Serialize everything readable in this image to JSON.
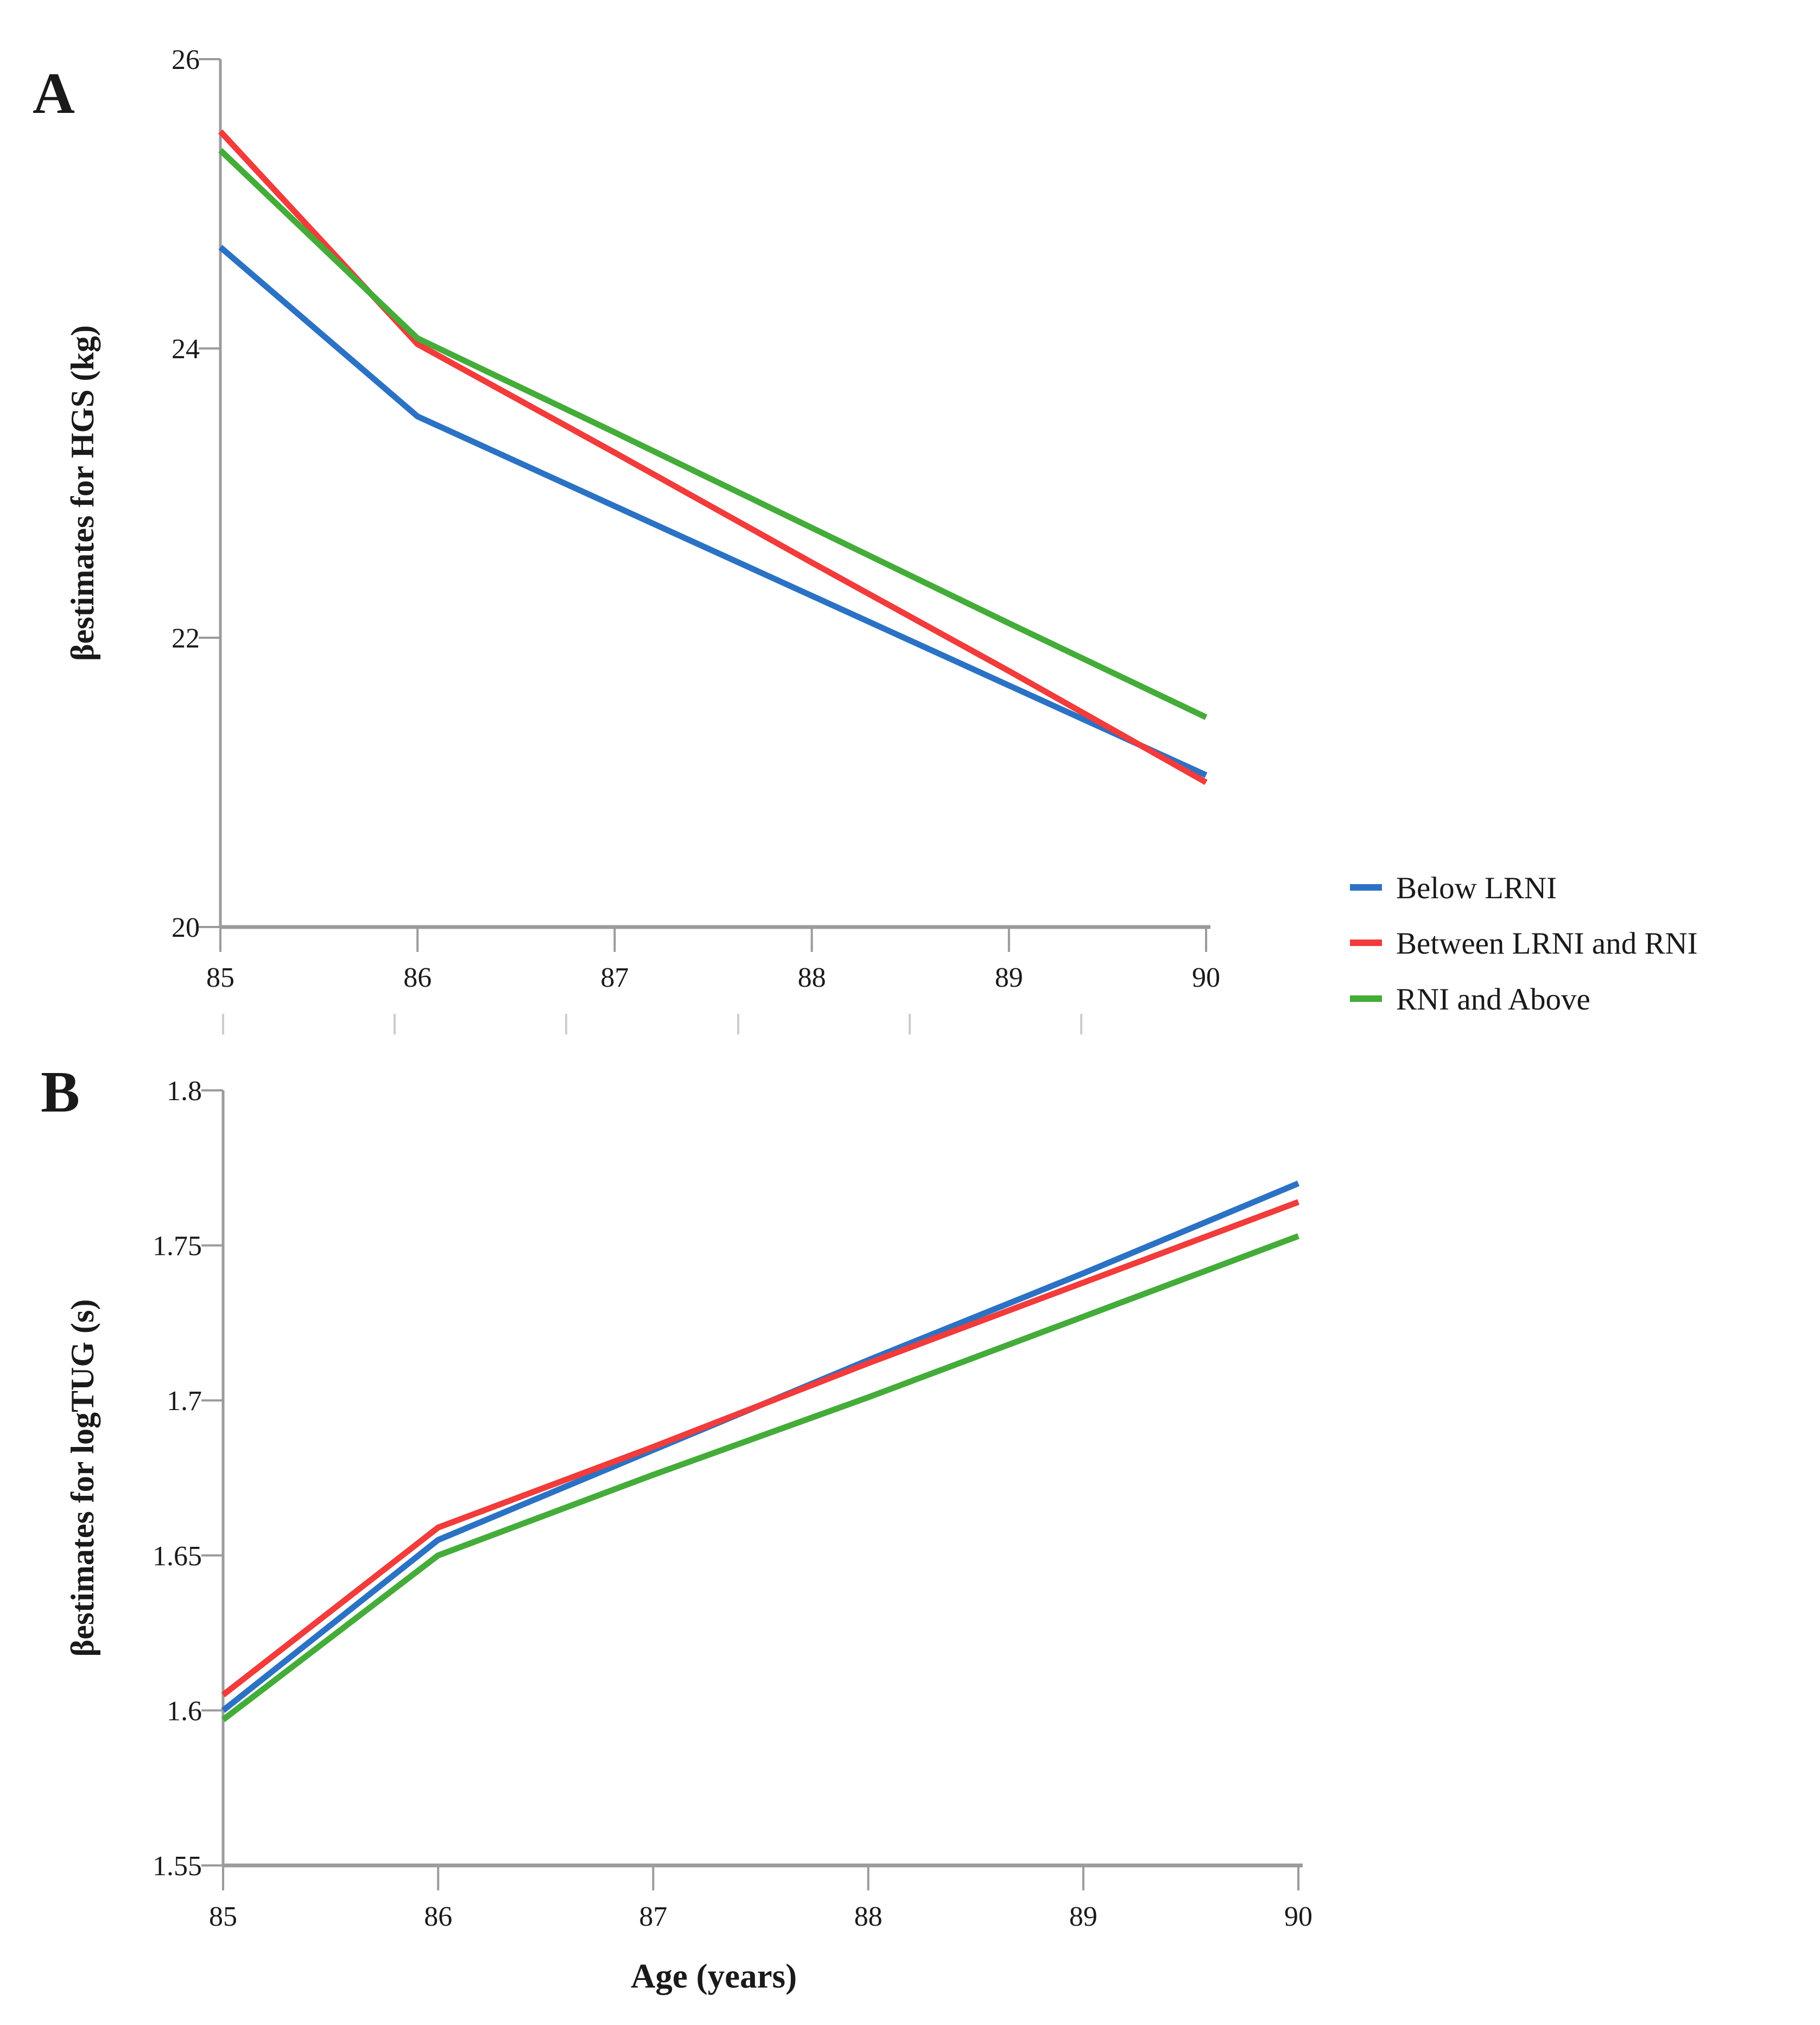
{
  "figure": {
    "background": "#ffffff",
    "axis_color": "#9b9b9b",
    "faint_tick_color": "#cccccc",
    "text_color": "#1a1a1a"
  },
  "legend": {
    "items": [
      {
        "label": "Below LRNI",
        "color": "#2b72c5"
      },
      {
        "label": "Between LRNI and RNI",
        "color": "#f23b3b"
      },
      {
        "label": "RNI and Above",
        "color": "#44ac39"
      }
    ]
  },
  "chart_data": [
    {
      "id": "A",
      "type": "line",
      "panel_label": "A",
      "title": "",
      "xlabel": "",
      "ylabel": "βestimates for HGS (kg)",
      "x": [
        85,
        86,
        87,
        88,
        89,
        90
      ],
      "xticks": [
        85,
        86,
        87,
        88,
        89,
        90
      ],
      "yticks": [
        26,
        24,
        22,
        20
      ],
      "xlim": [
        85,
        90
      ],
      "ylim": [
        20,
        26
      ],
      "grid": false,
      "legend_position": "right-of-plot",
      "series": [
        {
          "name": "Below LRNI",
          "color": "#2b72c5",
          "values": [
            24.7,
            23.53,
            22.91,
            22.29,
            21.67,
            21.05
          ]
        },
        {
          "name": "Between LRNI and RNI",
          "color": "#f23b3b",
          "values": [
            25.5,
            24.03,
            23.28,
            22.52,
            21.77,
            21.0
          ]
        },
        {
          "name": "RNI and Above",
          "color": "#44ac39",
          "values": [
            25.37,
            24.07,
            23.42,
            22.76,
            22.1,
            21.45
          ]
        }
      ]
    },
    {
      "id": "B",
      "type": "line",
      "panel_label": "B",
      "title": "",
      "xlabel": "Age (years)",
      "ylabel": "βestimates for logTUG (s)",
      "x": [
        85,
        86,
        87,
        88,
        89,
        90
      ],
      "xticks": [
        85,
        86,
        87,
        88,
        89,
        90
      ],
      "yticks": [
        1.8,
        1.75,
        1.7,
        1.65,
        1.6,
        1.55
      ],
      "xlim": [
        85,
        90
      ],
      "ylim": [
        1.55,
        1.8
      ],
      "grid": false,
      "legend_position": "none",
      "series": [
        {
          "name": "Below LRNI",
          "color": "#2b72c5",
          "values": [
            1.6,
            1.655,
            1.684,
            1.713,
            1.741,
            1.77
          ]
        },
        {
          "name": "Between LRNI and RNI",
          "color": "#f23b3b",
          "values": [
            1.605,
            1.659,
            1.685,
            1.712,
            1.738,
            1.764
          ]
        },
        {
          "name": "RNI and Above",
          "color": "#44ac39",
          "values": [
            1.597,
            1.65,
            1.676,
            1.701,
            1.727,
            1.753
          ]
        }
      ]
    }
  ]
}
